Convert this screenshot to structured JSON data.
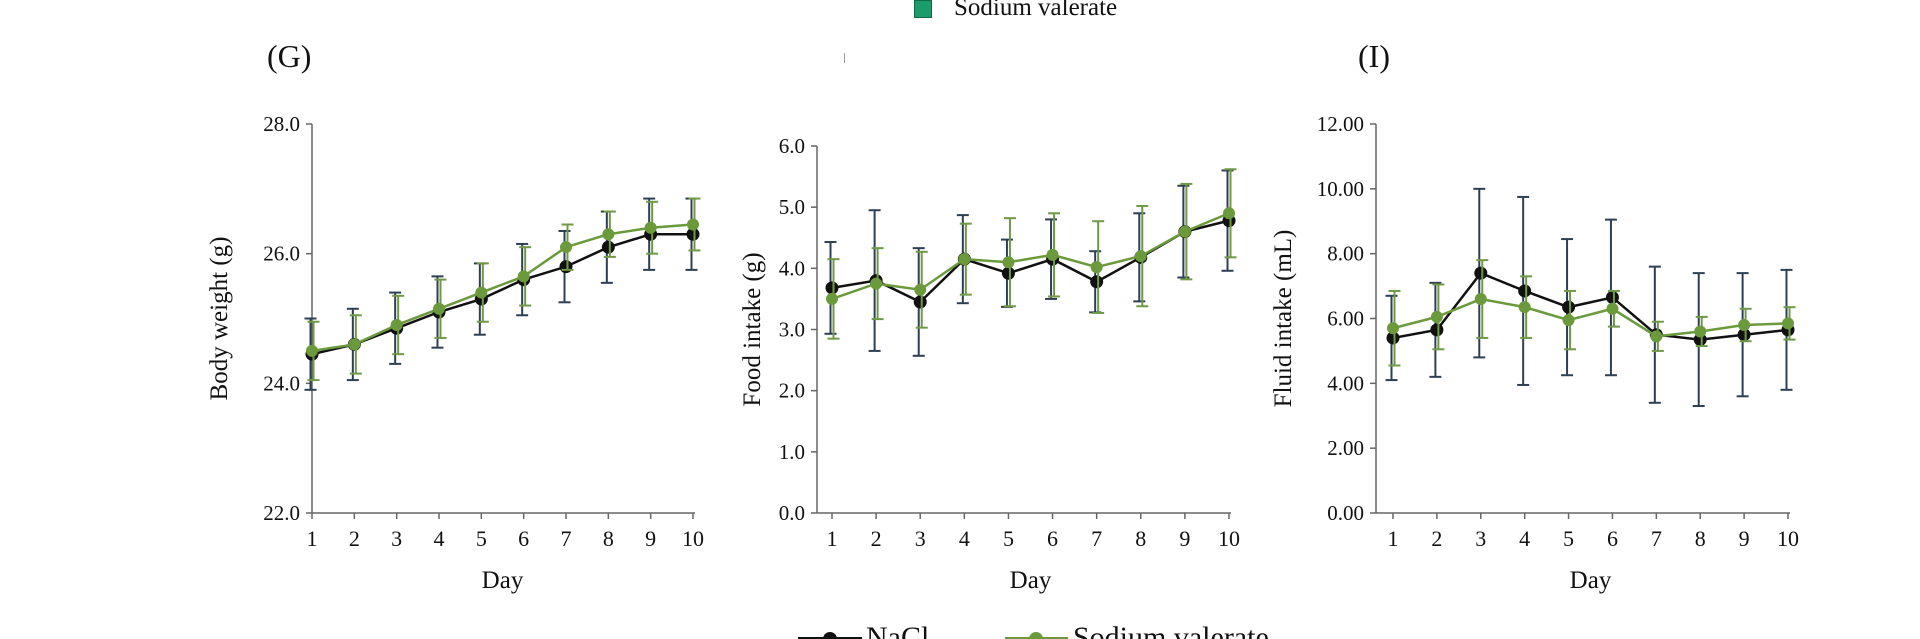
{
  "top_legend": {
    "label": "Sodium valerate",
    "color": "#1a9c6b"
  },
  "panel_labels": {
    "g": "(G)",
    "i": "(I)"
  },
  "bottom_legend": {
    "series_a": "NaCl",
    "series_b": "Sodium valerate"
  },
  "colors": {
    "nacl": "#111111",
    "valerate": "#6a9a3c",
    "err_nacl": "#2d3f55",
    "err_valerate": "#6f9a45"
  },
  "chart_data": [
    {
      "id": "G",
      "type": "line",
      "title": "",
      "xlabel": "Day",
      "ylabel": "Body weight (g)",
      "categories": [
        "1",
        "2",
        "3",
        "4",
        "5",
        "6",
        "7",
        "8",
        "9",
        "10"
      ],
      "ylim": [
        22.0,
        28.0
      ],
      "yticks": [
        "22.0",
        "24.0",
        "26.0",
        "28.0"
      ],
      "ytick_values": [
        22.0,
        24.0,
        26.0,
        28.0
      ],
      "series": [
        {
          "name": "NaCl",
          "values": [
            24.45,
            24.6,
            24.85,
            25.1,
            25.3,
            25.6,
            25.8,
            26.1,
            26.3,
            26.3
          ],
          "errors": [
            0.55,
            0.55,
            0.55,
            0.55,
            0.55,
            0.55,
            0.55,
            0.55,
            0.55,
            0.55
          ]
        },
        {
          "name": "Sodium valerate",
          "values": [
            24.5,
            24.6,
            24.9,
            25.15,
            25.4,
            25.65,
            26.1,
            26.3,
            26.4,
            26.45
          ],
          "errors": [
            0.45,
            0.45,
            0.45,
            0.45,
            0.45,
            0.45,
            0.35,
            0.35,
            0.4,
            0.4
          ]
        }
      ]
    },
    {
      "id": "H",
      "type": "line",
      "title": "",
      "xlabel": "Day",
      "ylabel": "Food intake (g)",
      "categories": [
        "1",
        "2",
        "3",
        "4",
        "5",
        "6",
        "7",
        "8",
        "9",
        "10"
      ],
      "ylim": [
        0.0,
        6.0
      ],
      "yticks": [
        "0.0",
        "1.0",
        "2.0",
        "3.0",
        "4.0",
        "5.0",
        "6.0"
      ],
      "ytick_values": [
        0.0,
        1.0,
        2.0,
        3.0,
        4.0,
        5.0,
        6.0
      ],
      "series": [
        {
          "name": "NaCl",
          "values": [
            3.68,
            3.8,
            3.45,
            4.15,
            3.92,
            4.15,
            3.78,
            4.18,
            4.6,
            4.78
          ],
          "errors": [
            0.75,
            1.15,
            0.88,
            0.72,
            0.55,
            0.65,
            0.5,
            0.72,
            0.75,
            0.82
          ]
        },
        {
          "name": "Sodium valerate",
          "values": [
            3.5,
            3.75,
            3.65,
            4.15,
            4.1,
            4.22,
            4.02,
            4.2,
            4.6,
            4.9
          ],
          "errors": [
            0.65,
            0.58,
            0.62,
            0.58,
            0.72,
            0.68,
            0.75,
            0.82,
            0.78,
            0.72
          ]
        }
      ]
    },
    {
      "id": "I",
      "type": "line",
      "title": "",
      "xlabel": "Day",
      "ylabel": "Fluid intake (mL)",
      "categories": [
        "1",
        "2",
        "3",
        "4",
        "5",
        "6",
        "7",
        "8",
        "9",
        "10"
      ],
      "ylim": [
        0.0,
        12.0
      ],
      "yticks": [
        "0.00",
        "2.00",
        "4.00",
        "6.00",
        "8.00",
        "10.00",
        "12.00"
      ],
      "ytick_values": [
        0.0,
        2.0,
        4.0,
        6.0,
        8.0,
        10.0,
        12.0
      ],
      "series": [
        {
          "name": "NaCl",
          "values": [
            5.4,
            5.65,
            7.4,
            6.85,
            6.35,
            6.65,
            5.5,
            5.35,
            5.5,
            5.65
          ],
          "errors": [
            1.3,
            1.45,
            2.6,
            2.9,
            2.1,
            2.4,
            2.1,
            2.05,
            1.9,
            1.85
          ]
        },
        {
          "name": "Sodium valerate",
          "values": [
            5.7,
            6.05,
            6.6,
            6.35,
            5.95,
            6.3,
            5.45,
            5.6,
            5.8,
            5.85
          ],
          "errors": [
            1.15,
            1.0,
            1.2,
            0.95,
            0.9,
            0.55,
            0.45,
            0.45,
            0.5,
            0.5
          ]
        }
      ]
    }
  ]
}
